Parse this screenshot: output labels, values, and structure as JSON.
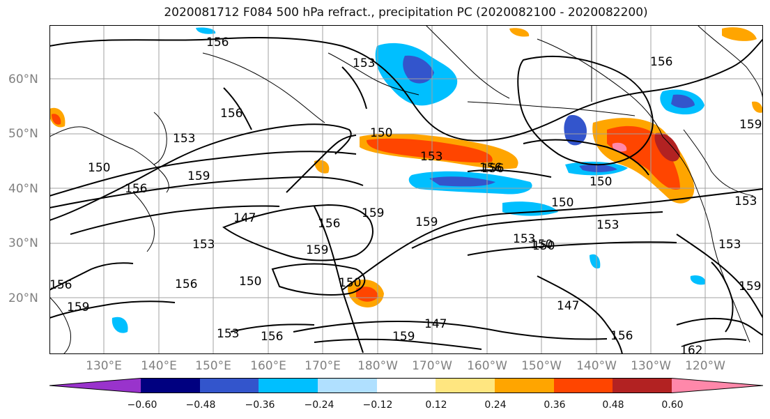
{
  "title": "2020081712 F084 500 hPa refract., precipitation PC (2020082100 - 2020082200)",
  "map": {
    "projection": "cylindrical",
    "lat_labels": [
      "60°N",
      "50°N",
      "40°N",
      "30°N",
      "20°N"
    ],
    "lon_labels": [
      "130°E",
      "140°E",
      "150°E",
      "160°E",
      "170°E",
      "180°W",
      "170°W",
      "160°W",
      "150°W",
      "140°W",
      "130°W",
      "120°W"
    ],
    "contour_labels": [
      "156",
      "153",
      "156",
      "150",
      "156",
      "159",
      "153",
      "150",
      "147",
      "159",
      "156",
      "159",
      "153",
      "156",
      "150",
      "150",
      "153",
      "150",
      "153",
      "156",
      "147",
      "159",
      "153",
      "147",
      "156",
      "150",
      "162",
      "159",
      "156",
      "159",
      "150",
      "150",
      "156",
      "153",
      "156",
      "153",
      "159",
      "156",
      "153",
      "159"
    ],
    "colors": {
      "coast": "#000000",
      "contour": "#000000",
      "grid": "#a0a0a0"
    }
  },
  "colorbar": {
    "ticks": [
      "−0.60",
      "−0.48",
      "−0.36",
      "−0.24",
      "−0.12",
      "0.12",
      "0.24",
      "0.36",
      "0.48",
      "0.60"
    ],
    "colors": [
      "#9933cc",
      "#000080",
      "#3355cc",
      "#00bfff",
      "#b0e0ff",
      "#ffffff",
      "#ffe680",
      "#ffa500",
      "#ff4500",
      "#b22222",
      "#ff88aa",
      "#ff88aa"
    ]
  }
}
